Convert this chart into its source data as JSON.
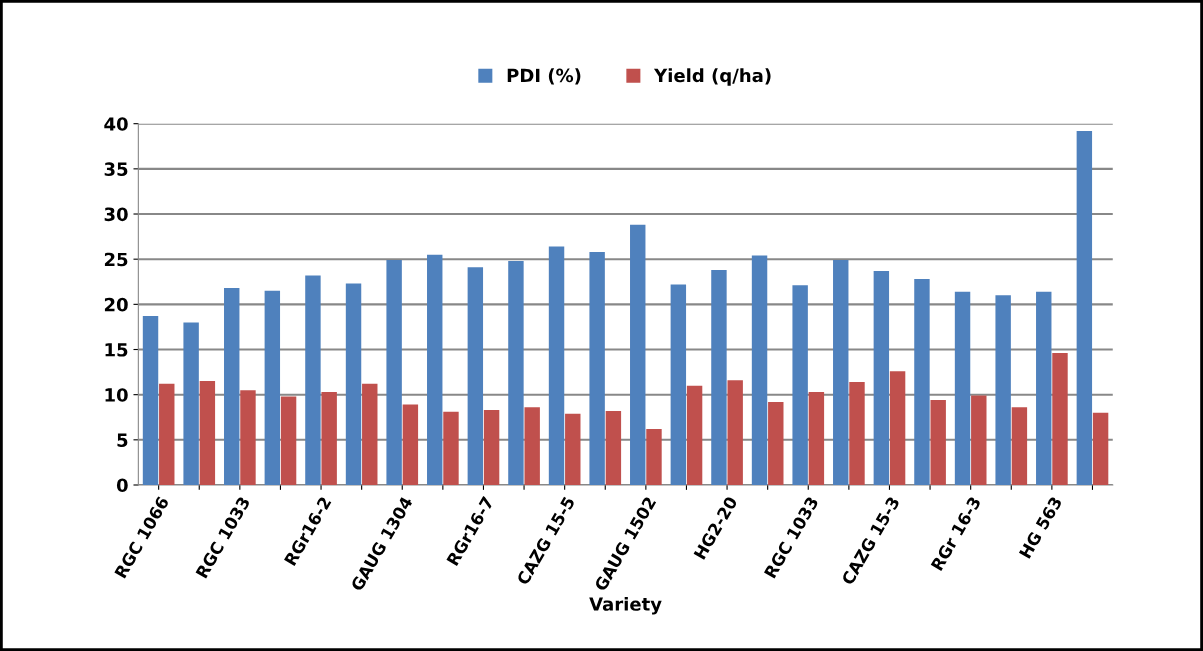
{
  "chart_data": {
    "type": "bar",
    "xlabel": "Variety",
    "categories": [
      "RGC 1066",
      null,
      "RGC 1033",
      null,
      "RGr16-2",
      null,
      "GAUG 1304",
      null,
      "RGr16-7",
      null,
      "CAZG 15-5",
      null,
      "GAUG 1502",
      null,
      "HG2-20",
      null,
      "RGC 1033",
      null,
      "CAZG 15-3",
      null,
      "RGr 16-3",
      null,
      "HG 563",
      null
    ],
    "series": [
      {
        "name": "PDI (%)",
        "color": "#4f81bd",
        "values": [
          18.7,
          18.0,
          21.8,
          21.5,
          23.2,
          22.3,
          24.9,
          25.5,
          24.1,
          24.8,
          26.4,
          25.8,
          28.8,
          22.2,
          23.8,
          25.4,
          22.1,
          24.9,
          23.7,
          22.8,
          21.4,
          21.0,
          21.4,
          39.2
        ]
      },
      {
        "name": "Yield (q/ha)",
        "color": "#c0504d",
        "values": [
          11.2,
          11.5,
          10.5,
          9.8,
          10.3,
          11.2,
          8.9,
          8.1,
          8.3,
          8.6,
          7.9,
          8.2,
          6.2,
          11.0,
          11.6,
          9.2,
          10.3,
          11.4,
          12.6,
          9.4,
          9.9,
          8.6,
          14.6,
          8.0
        ]
      }
    ],
    "ylim": [
      0,
      40
    ],
    "yticks": [
      0,
      5,
      10,
      15,
      20,
      25,
      30,
      35,
      40
    ],
    "grid": "y",
    "legend": "top"
  }
}
